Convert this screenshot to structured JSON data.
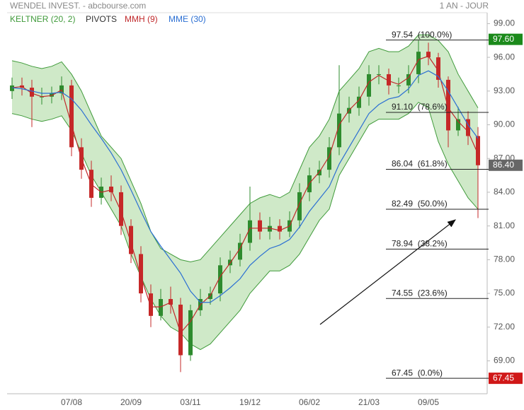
{
  "chart_data": {
    "type": "candlestick",
    "title": "WENDEL INVEST. - abcbourse.com",
    "period": "1 AN - JOUR",
    "categories": [
      null,
      null,
      null,
      null,
      null,
      null,
      "07/08",
      null,
      null,
      null,
      null,
      null,
      "20/09",
      null,
      null,
      null,
      null,
      null,
      "03/11",
      null,
      null,
      null,
      null,
      null,
      "19/12",
      null,
      null,
      null,
      null,
      null,
      "06/02",
      null,
      null,
      null,
      null,
      null,
      "21/03",
      null,
      null,
      null,
      null,
      null,
      "09/05",
      null,
      null,
      null,
      null,
      null
    ],
    "open": [
      93.0,
      93.5,
      93.3,
      92.5,
      92.5,
      92.8,
      93.5,
      88,
      86,
      83.5,
      84.5,
      84,
      81,
      78.5,
      75,
      73,
      74.5,
      74,
      69.5,
      73.5,
      74.5,
      75,
      77.5,
      78,
      79.5,
      81.5,
      80.5,
      81,
      80.5,
      81.5,
      84,
      85.5,
      86,
      88,
      91,
      91.5,
      92.5,
      94.5,
      94.5,
      93.5,
      93.5,
      94.5,
      96.5,
      96,
      94,
      89.5,
      90.5,
      89
    ],
    "high": [
      94.2,
      94.2,
      94.0,
      93.3,
      93.4,
      94.3,
      94.0,
      88.8,
      86.8,
      85.3,
      85.5,
      84.6,
      81.6,
      79.2,
      75.8,
      75.4,
      75.6,
      74.6,
      74.0,
      75.4,
      75.6,
      78.2,
      78.8,
      80.3,
      84.5,
      82.2,
      81.8,
      81.6,
      82.3,
      84.8,
      86.2,
      86.8,
      88.9,
      95.3,
      92.5,
      93.4,
      95.3,
      95.3,
      95.0,
      94.2,
      95.3,
      97.5,
      97.3,
      96.4,
      94.3,
      91.6,
      91.2,
      89.8
    ],
    "low": [
      92.3,
      92.6,
      89.8,
      91.8,
      91.9,
      92.2,
      87.2,
      85.2,
      82.7,
      82.9,
      83.2,
      80.2,
      77.7,
      74.2,
      72.0,
      72.6,
      73.2,
      68.0,
      69.0,
      73.0,
      74.0,
      74.3,
      76.8,
      77.4,
      78.8,
      79.8,
      79.8,
      79.8,
      80.0,
      80.8,
      83.2,
      84.8,
      85.3,
      87.3,
      90.2,
      90.8,
      91.7,
      93.6,
      92.7,
      92.8,
      92.8,
      93.7,
      95.3,
      93.3,
      88.0,
      89.0,
      88.2,
      81.7
    ],
    "close": [
      93.5,
      93.3,
      92.5,
      92.5,
      92.8,
      93.5,
      88,
      86,
      83.5,
      84.5,
      84,
      81,
      78.5,
      75,
      73,
      74.5,
      74,
      69.5,
      73.5,
      74.5,
      75,
      77.5,
      78,
      79.5,
      81.5,
      80.5,
      81,
      80.5,
      81.5,
      84,
      85.5,
      86,
      88,
      91,
      91.5,
      92.5,
      94.5,
      94.5,
      93.5,
      93.5,
      94.5,
      96.5,
      96,
      94,
      89.5,
      90.5,
      89,
      86.4
    ],
    "up_color": "#2e8b2e",
    "down_color": "#c62828",
    "series": [
      {
        "name": "KELTNER (20, 2)",
        "color": "#3f9a3a",
        "fill": "#cfe9c8",
        "upper": [
          95.7,
          95.5,
          95.2,
          95.0,
          95.2,
          95.6,
          94.5,
          93.0,
          91.0,
          89.0,
          88.0,
          87.0,
          85.0,
          83.0,
          80.5,
          79.0,
          78.5,
          78.0,
          77.8,
          78.0,
          79.0,
          80.0,
          81.0,
          82.0,
          83.0,
          83.5,
          83.8,
          83.5,
          84.0,
          86.0,
          88.0,
          89.0,
          90.5,
          93.0,
          94.0,
          95.0,
          96.5,
          96.8,
          96.5,
          96.5,
          97.0,
          98.0,
          98.0,
          97.5,
          96.5,
          94.5,
          93.0,
          91.5
        ],
        "lower": [
          91.0,
          90.8,
          90.5,
          90.3,
          90.5,
          90.8,
          89.5,
          87.5,
          85.5,
          84.0,
          82.5,
          81.0,
          78.5,
          76.5,
          74.5,
          73.0,
          72.0,
          71.5,
          70.5,
          70.0,
          70.5,
          71.5,
          72.5,
          73.5,
          75.0,
          76.0,
          77.0,
          77.0,
          77.5,
          78.5,
          80.0,
          81.5,
          82.5,
          85.5,
          87.0,
          88.5,
          90.0,
          90.5,
          90.5,
          90.5,
          91.0,
          92.0,
          91.5,
          88.5,
          86.5,
          85.0,
          83.5,
          82.5
        ]
      },
      {
        "name": "PIVOTS",
        "color": "#333333"
      },
      {
        "name": "MMH (9)",
        "color": "#c0282a",
        "values": [
          93.3,
          93.4,
          92.8,
          92.5,
          92.6,
          93.1,
          90.0,
          87.0,
          84.7,
          84.0,
          84.2,
          82.3,
          79.5,
          76.5,
          73.8,
          73.8,
          74.2,
          71.5,
          72.5,
          74.0,
          74.8,
          76.5,
          77.7,
          79.0,
          80.8,
          80.8,
          80.8,
          80.6,
          81.0,
          83.0,
          84.8,
          85.8,
          87.2,
          90.0,
          91.3,
          92.2,
          93.8,
          94.4,
          93.9,
          93.6,
          94.2,
          95.8,
          96.1,
          94.8,
          91.5,
          90.3,
          89.4,
          87.4
        ]
      },
      {
        "name": "MME (30)",
        "color": "#2b6fd3",
        "values": [
          93.3,
          93.2,
          93.0,
          92.8,
          92.8,
          92.9,
          92.3,
          91.3,
          90.0,
          88.8,
          87.5,
          86.0,
          84.2,
          82.3,
          80.5,
          79.2,
          78.0,
          76.8,
          75.2,
          74.2,
          74.2,
          74.8,
          75.5,
          76.3,
          77.5,
          78.3,
          79.0,
          79.3,
          79.8,
          80.9,
          82.3,
          83.4,
          84.5,
          86.5,
          88.0,
          89.5,
          91.0,
          91.8,
          92.3,
          92.5,
          93.2,
          94.4,
          94.8,
          94.3,
          93.0,
          91.5,
          90.0,
          88.8
        ]
      }
    ],
    "fib_levels": [
      {
        "value": 97.54,
        "label": "97.54  (100.0%)"
      },
      {
        "value": 91.1,
        "label": "91.10  (78.6%)"
      },
      {
        "value": 86.04,
        "label": "86.04  (61.8%)"
      },
      {
        "value": 82.49,
        "label": "82.49  (50.0%)"
      },
      {
        "value": 78.94,
        "label": "78.94  (38.2%)"
      },
      {
        "value": 74.55,
        "label": "74.55  (23.6%)"
      },
      {
        "value": 67.45,
        "label": "67.45  (0.0%)"
      }
    ],
    "price_markers": [
      {
        "value": 97.6,
        "label": "97.60",
        "color": "#1b8a1b"
      },
      {
        "value": 86.4,
        "label": "86.40",
        "color": "#666666"
      },
      {
        "value": 67.45,
        "label": "67.45",
        "color": "#d01818"
      }
    ],
    "ylim": [
      66.2,
      101.1
    ],
    "yticks": [
      {
        "value": 69,
        "label": "69.00"
      },
      {
        "value": 72,
        "label": "72.00"
      },
      {
        "value": 75,
        "label": "75.00"
      },
      {
        "value": 78,
        "label": "78.00"
      },
      {
        "value": 81,
        "label": "81.00"
      },
      {
        "value": 84,
        "label": "84.00"
      },
      {
        "value": 87,
        "label": "87.00"
      },
      {
        "value": 90,
        "label": "90.00"
      },
      {
        "value": 93,
        "label": "93.00"
      },
      {
        "value": 96,
        "label": "96.00"
      },
      {
        "value": 99,
        "label": "99.00"
      }
    ]
  }
}
